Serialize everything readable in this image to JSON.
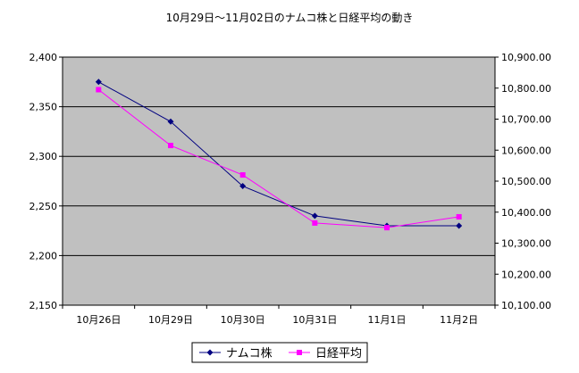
{
  "chart_data": {
    "type": "line",
    "title": "10月29日～11月02日のナムコ株と日経平均の動き",
    "categories": [
      "10月26日",
      "10月29日",
      "10月30日",
      "10月31日",
      "11月1日",
      "11月2日"
    ],
    "y_left": {
      "min": 2150,
      "max": 2400,
      "ticks": [
        2150,
        2200,
        2250,
        2300,
        2350,
        2400
      ],
      "tick_labels": [
        "2,150",
        "2,200",
        "2,250",
        "2,300",
        "2,350",
        "2,400"
      ]
    },
    "y_right": {
      "min": 10100,
      "max": 10900,
      "ticks": [
        10100,
        10200,
        10300,
        10400,
        10500,
        10600,
        10700,
        10800,
        10900
      ],
      "tick_labels": [
        "10,100.00",
        "10,200.00",
        "10,300.00",
        "10,400.00",
        "10,500.00",
        "10,600.00",
        "10,700.00",
        "10,800.00",
        "10,900.00"
      ]
    },
    "series": [
      {
        "name": "ナムコ株",
        "axis": "left",
        "color": "#000080",
        "marker": "diamond",
        "values": [
          2375,
          2335,
          2270,
          2240,
          2230,
          2230
        ]
      },
      {
        "name": "日経平均",
        "axis": "right",
        "color": "#ff00ff",
        "marker": "square",
        "values": [
          10795,
          10615,
          10520,
          10365,
          10350,
          10385
        ]
      }
    ],
    "grid": true,
    "plot_background": "#c0c0c0",
    "legend": "bottom"
  }
}
